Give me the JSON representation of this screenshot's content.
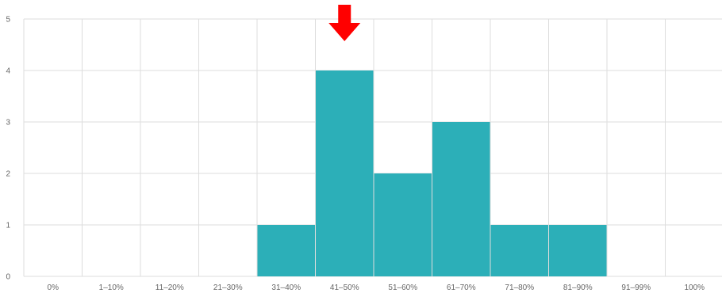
{
  "chart_data": {
    "type": "bar",
    "title": "",
    "xlabel": "",
    "ylabel": "",
    "categories": [
      "0%",
      "1–10%",
      "11–20%",
      "21–30%",
      "31–40%",
      "41–50%",
      "51–60%",
      "61–70%",
      "71–80%",
      "81–90%",
      "91–99%",
      "100%"
    ],
    "values": [
      0,
      0,
      0,
      0,
      1,
      4,
      2,
      3,
      1,
      1,
      0,
      0
    ],
    "ylim": [
      0,
      5
    ],
    "yticks": [
      "0",
      "1",
      "2",
      "3",
      "4",
      "5"
    ],
    "grid": true,
    "legend": false,
    "bar_color": "#2CAFB8",
    "grid_color": "#DDDDDD",
    "annotation": {
      "type": "arrow-down",
      "category": "41–50%",
      "color": "#FF0000"
    }
  }
}
